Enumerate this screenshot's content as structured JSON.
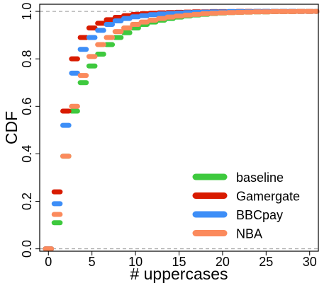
{
  "chart_data": {
    "type": "line",
    "title": "",
    "xlabel": "# uppercases",
    "ylabel": "CDF",
    "xlim": [
      -1,
      31
    ],
    "ylim": [
      -0.01,
      1.03
    ],
    "x_ticks": [
      "0",
      "5",
      "10",
      "15",
      "20",
      "25",
      "30"
    ],
    "y_ticks": [
      "0.0",
      "0.2",
      "0.4",
      "0.6",
      "0.8",
      "1.0"
    ],
    "reference_lines": [
      0,
      1
    ],
    "grid": false,
    "legend_position": "bottom-right",
    "series": [
      {
        "name": "baseline",
        "color": "#3ec93e",
        "x": [
          0,
          1,
          2,
          3,
          4,
          5,
          6,
          7,
          8,
          9,
          10,
          11,
          12,
          13,
          14,
          15,
          16,
          17,
          18,
          19,
          20,
          21,
          22,
          23,
          24,
          25,
          26,
          27,
          28,
          29,
          30,
          31
        ],
        "y": [
          0.0,
          0.11,
          0.39,
          0.58,
          0.7,
          0.77,
          0.82,
          0.86,
          0.89,
          0.91,
          0.93,
          0.945,
          0.955,
          0.963,
          0.97,
          0.976,
          0.981,
          0.985,
          0.988,
          0.991,
          0.993,
          0.995,
          0.996,
          0.997,
          0.998,
          0.998,
          0.999,
          0.999,
          0.999,
          1.0,
          1.0,
          1.0
        ]
      },
      {
        "name": "Gamergate",
        "color": "#d81b00",
        "x": [
          0,
          1,
          2,
          3,
          4,
          5,
          6,
          7,
          8,
          9,
          10,
          11,
          12,
          13,
          14,
          15,
          16,
          17,
          18,
          19,
          20,
          21,
          22,
          23,
          24,
          25,
          26,
          27,
          28,
          29,
          30,
          31
        ],
        "y": [
          0.0,
          0.24,
          0.58,
          0.8,
          0.89,
          0.93,
          0.95,
          0.965,
          0.975,
          0.982,
          0.987,
          0.99,
          0.992,
          0.994,
          0.995,
          0.996,
          0.997,
          0.998,
          0.998,
          0.999,
          0.999,
          0.999,
          1.0,
          1.0,
          1.0,
          1.0,
          1.0,
          1.0,
          1.0,
          1.0,
          1.0,
          1.0
        ]
      },
      {
        "name": "BBCpay",
        "color": "#3d8ef7",
        "x": [
          0,
          1,
          2,
          3,
          4,
          5,
          6,
          7,
          8,
          9,
          10,
          11,
          12,
          13,
          14,
          15,
          16,
          17,
          18,
          19,
          20,
          21,
          22,
          23,
          24,
          25,
          26,
          27,
          28,
          29,
          30,
          31
        ],
        "y": [
          0.0,
          0.19,
          0.52,
          0.74,
          0.84,
          0.89,
          0.92,
          0.945,
          0.96,
          0.97,
          0.977,
          0.982,
          0.986,
          0.989,
          0.991,
          0.993,
          0.995,
          0.996,
          0.997,
          0.998,
          0.998,
          0.999,
          0.999,
          0.999,
          1.0,
          1.0,
          1.0,
          1.0,
          1.0,
          1.0,
          1.0,
          1.0
        ]
      },
      {
        "name": "NBA",
        "color": "#fb8a5c",
        "x": [
          0,
          1,
          2,
          3,
          4,
          5,
          6,
          7,
          8,
          9,
          10,
          11,
          12,
          13,
          14,
          15,
          16,
          17,
          18,
          19,
          20,
          21,
          22,
          23,
          24,
          25,
          26,
          27,
          28,
          29,
          30,
          31
        ],
        "y": [
          0.0,
          0.145,
          0.39,
          0.6,
          0.73,
          0.81,
          0.86,
          0.89,
          0.915,
          0.93,
          0.945,
          0.955,
          0.963,
          0.97,
          0.976,
          0.98,
          0.984,
          0.987,
          0.99,
          0.992,
          0.994,
          0.995,
          0.996,
          0.997,
          0.998,
          0.998,
          0.999,
          0.999,
          0.999,
          1.0,
          1.0,
          1.0
        ]
      }
    ]
  }
}
